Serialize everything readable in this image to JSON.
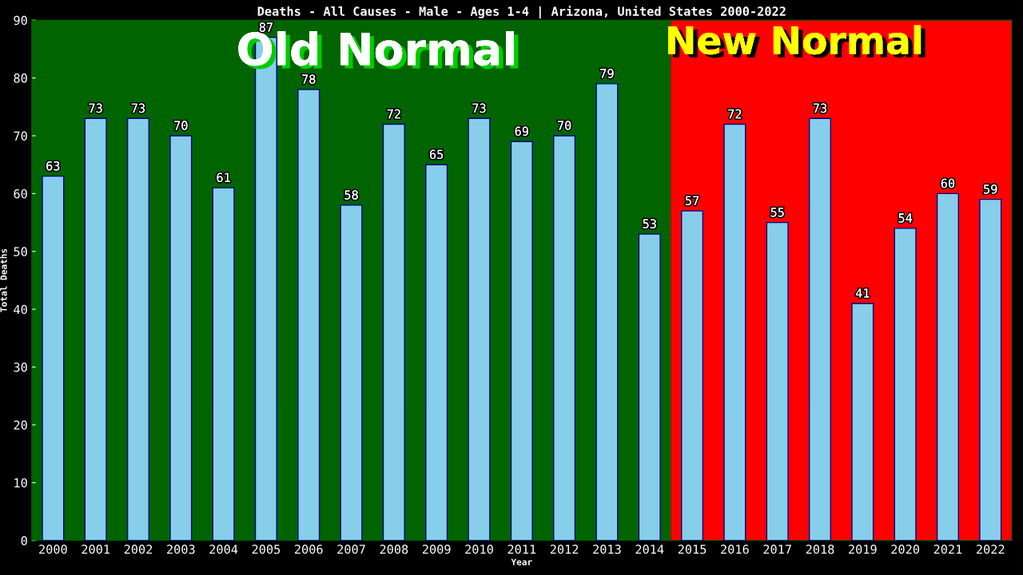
{
  "chart_data": {
    "type": "bar",
    "title": "Deaths - All Causes - Male - Ages 1-4 | Arizona, United States 2000-2022",
    "xlabel": "Year",
    "ylabel": "Total Deaths",
    "categories": [
      "2000",
      "2001",
      "2002",
      "2003",
      "2004",
      "2005",
      "2006",
      "2007",
      "2008",
      "2009",
      "2010",
      "2011",
      "2012",
      "2013",
      "2014",
      "2015",
      "2016",
      "2017",
      "2018",
      "2019",
      "2020",
      "2021",
      "2022"
    ],
    "values": [
      63,
      73,
      73,
      70,
      61,
      87,
      78,
      58,
      72,
      65,
      73,
      69,
      70,
      79,
      53,
      57,
      72,
      55,
      73,
      41,
      54,
      60,
      59
    ],
    "color": "#87ceeb",
    "data_labels": true,
    "grid": false,
    "ylim": [
      0,
      90
    ],
    "yticks": [
      0,
      10,
      20,
      30,
      40,
      50,
      60,
      70,
      80,
      90
    ],
    "bands": [
      {
        "axis": "x",
        "from": "2000",
        "to": "2014",
        "label": "Old Normal",
        "color": "#006400"
      },
      {
        "axis": "x",
        "from": "2015",
        "to": "2022",
        "label": "New Normal",
        "color": "#ff0000"
      }
    ]
  }
}
